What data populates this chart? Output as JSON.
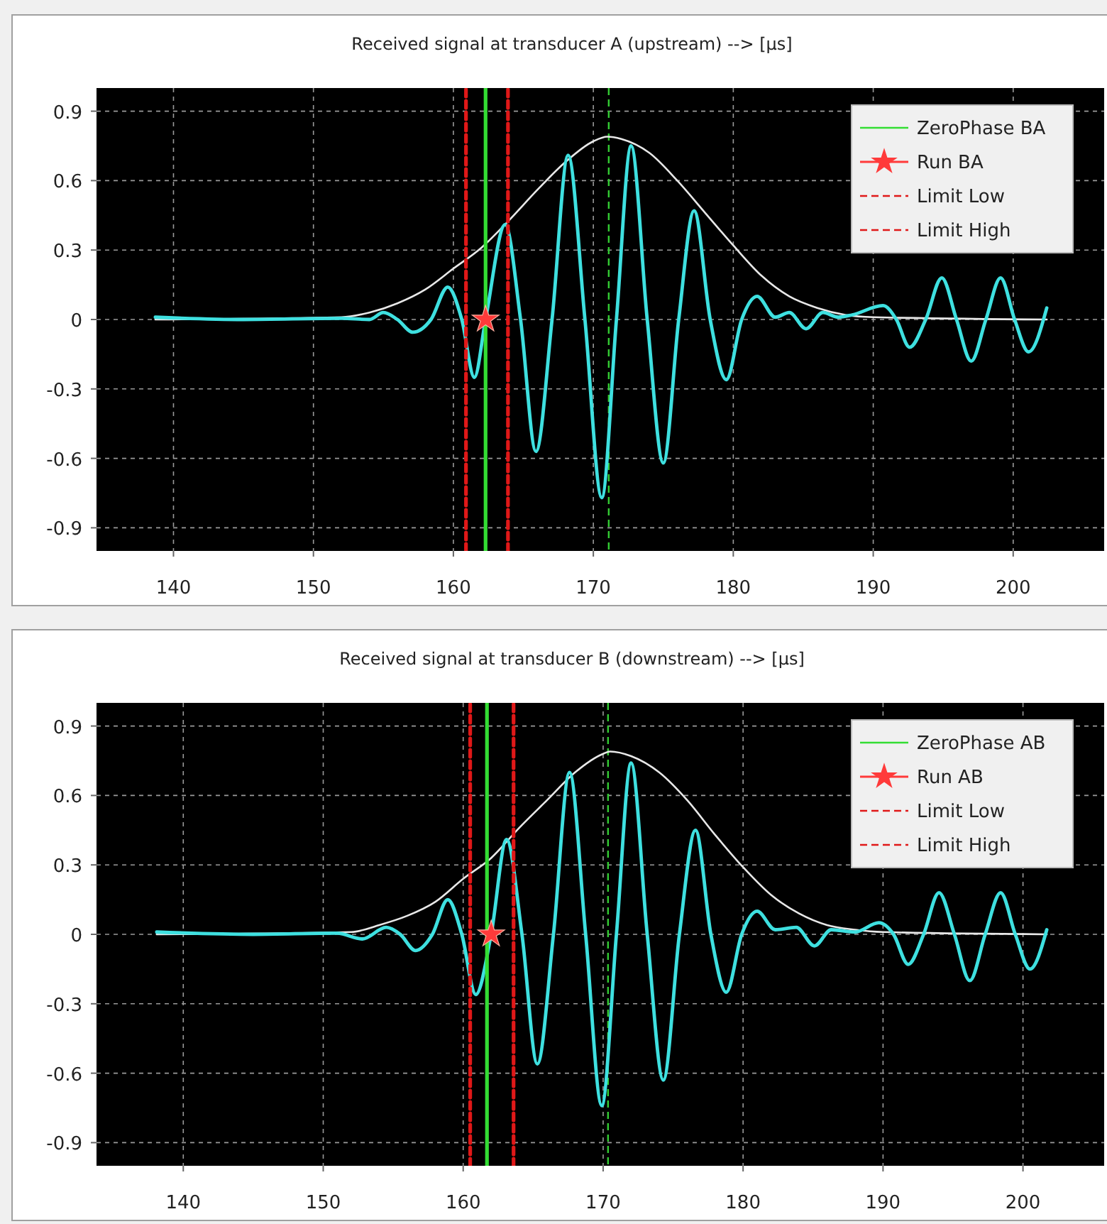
{
  "chart_data": [
    {
      "type": "line",
      "title": "Received signal at transducer A (upstream) --> [µs]",
      "xlim": [
        134.5,
        206.5
      ],
      "ylim": [
        -1,
        1
      ],
      "xticks": [
        140,
        150,
        160,
        170,
        180,
        190,
        200
      ],
      "yticks": [
        -0.9,
        -0.6,
        -0.3,
        0,
        0.3,
        0.6,
        0.9
      ],
      "grid": true,
      "legend": "top right",
      "series": [
        {
          "type": "line",
          "color": "#e8e8e8",
          "x": [
            138.7,
            152,
            154,
            156,
            158,
            160,
            162,
            164,
            166,
            168,
            170,
            171,
            172,
            174,
            176,
            178,
            180,
            182,
            184,
            186,
            188,
            190,
            202.4
          ],
          "values": [
            0,
            0.01,
            0.03,
            0.07,
            0.13,
            0.22,
            0.31,
            0.43,
            0.56,
            0.68,
            0.77,
            0.79,
            0.78,
            0.72,
            0.6,
            0.46,
            0.32,
            0.19,
            0.1,
            0.05,
            0.02,
            0.01,
            0
          ]
        },
        {
          "type": "line",
          "color": "#3ee0e0",
          "x": [
            138.7,
            145,
            152,
            154,
            155,
            156,
            157.1,
            158.4,
            159.6,
            160.6,
            161.5,
            162.3,
            163.7,
            164.8,
            165.9,
            167.05,
            168.2,
            169.4,
            170.6,
            171.65,
            172.7,
            173.85,
            175,
            176.1,
            177.2,
            178.35,
            179.5,
            180.6,
            181.7,
            183,
            184,
            185.2,
            186.4,
            187.5,
            188.5,
            190.7,
            191.65,
            192.6,
            193.75,
            194.9,
            195.95,
            197,
            198.05,
            199.1,
            200.1,
            201.1,
            202.4
          ],
          "values": [
            0.01,
            0,
            0.005,
            0,
            0.03,
            0,
            -0.055,
            0,
            0.14,
            0,
            -0.25,
            0,
            0.41,
            0,
            -0.57,
            0,
            0.71,
            0,
            -0.77,
            0,
            0.75,
            0,
            -0.62,
            0,
            0.47,
            0,
            -0.26,
            0,
            0.1,
            0.01,
            0.03,
            -0.04,
            0.03,
            0.01,
            0.02,
            0.06,
            0,
            -0.12,
            0,
            0.18,
            0,
            -0.18,
            0,
            0.18,
            0,
            -0.14,
            0.05
          ]
        },
        {
          "type": "line",
          "name": "ZeroPhase BA",
          "color": "#33dd33",
          "x": [
            162.3,
            162.3
          ],
          "values": [
            -1,
            1
          ]
        },
        {
          "type": "scatter",
          "name": "Run BA",
          "color": "#ff3a3a",
          "marker": "star",
          "x": [
            162.3
          ],
          "values": [
            0
          ]
        },
        {
          "type": "line",
          "name": "Limit Low",
          "color": "#e01818",
          "line_style": "dashed",
          "x": [
            160.9,
            160.9
          ],
          "values": [
            -1,
            1
          ]
        },
        {
          "type": "line",
          "name": "Limit High",
          "color": "#e01818",
          "line_style": "dashed",
          "x": [
            163.9,
            163.9
          ],
          "values": [
            -1,
            1
          ]
        }
      ],
      "ref_lines": [
        {
          "axis": "x",
          "value": 171.1,
          "color": "#33cc33",
          "line_style": "dashed"
        }
      ]
    },
    {
      "type": "line",
      "title": "Received signal at transducer B (downstream) --> [µs]",
      "xlim": [
        133.8,
        205.8
      ],
      "ylim": [
        -1,
        1
      ],
      "xticks": [
        140,
        150,
        160,
        170,
        180,
        190,
        200
      ],
      "yticks": [
        -0.9,
        -0.6,
        -0.3,
        0,
        0.3,
        0.6,
        0.9
      ],
      "grid": true,
      "legend": "top right",
      "series": [
        {
          "type": "line",
          "color": "#e8e8e8",
          "x": [
            138.1,
            152,
            154,
            156,
            158,
            160,
            162,
            164,
            166,
            168,
            170,
            170.5,
            172,
            174,
            176,
            178,
            180,
            182,
            184,
            186,
            188,
            190,
            201.7
          ],
          "values": [
            0,
            0.01,
            0.04,
            0.08,
            0.14,
            0.24,
            0.33,
            0.46,
            0.58,
            0.7,
            0.78,
            0.79,
            0.77,
            0.7,
            0.58,
            0.43,
            0.29,
            0.17,
            0.09,
            0.04,
            0.02,
            0.01,
            0
          ]
        },
        {
          "type": "line",
          "color": "#3ee0e0",
          "x": [
            138.1,
            145,
            151,
            152.8,
            154.5,
            155.5,
            156.6,
            157.8,
            158.9,
            159.9,
            160.9,
            162,
            163.1,
            164.2,
            165.3,
            166.45,
            167.6,
            168.75,
            169.9,
            170.95,
            172,
            173.15,
            174.3,
            175.45,
            176.6,
            177.7,
            178.8,
            179.9,
            181,
            182.3,
            183.8,
            185.1,
            186.3,
            188,
            189.7,
            190.75,
            191.8,
            192.9,
            194,
            195.1,
            196.2,
            197.3,
            198.4,
            199.45,
            200.5,
            201.7
          ],
          "values": [
            0.01,
            0,
            0.005,
            -0.02,
            0.03,
            0,
            -0.07,
            0,
            0.15,
            0,
            -0.26,
            0,
            0.41,
            0,
            -0.56,
            0,
            0.7,
            0,
            -0.74,
            0,
            0.74,
            0,
            -0.63,
            0,
            0.45,
            0,
            -0.25,
            0,
            0.1,
            0.02,
            0.03,
            -0.05,
            0.02,
            0.01,
            0.05,
            0,
            -0.13,
            0,
            0.18,
            0,
            -0.2,
            0,
            0.18,
            0,
            -0.15,
            0.02
          ]
        },
        {
          "type": "line",
          "name": "ZeroPhase AB",
          "color": "#33dd33",
          "x": [
            161.7,
            161.7
          ],
          "values": [
            -1,
            1
          ]
        },
        {
          "type": "scatter",
          "name": "Run AB",
          "color": "#ff3a3a",
          "marker": "star",
          "x": [
            162.0
          ],
          "values": [
            0
          ]
        },
        {
          "type": "line",
          "name": "Limit Low",
          "color": "#e01818",
          "line_style": "dashed",
          "x": [
            160.5,
            160.5
          ],
          "values": [
            -1,
            1
          ]
        },
        {
          "type": "line",
          "name": "Limit High",
          "color": "#e01818",
          "line_style": "dashed",
          "x": [
            163.6,
            163.6
          ],
          "values": [
            -1,
            1
          ]
        }
      ],
      "ref_lines": [
        {
          "axis": "x",
          "value": 170.35,
          "color": "#33cc33",
          "line_style": "dashed"
        }
      ]
    }
  ]
}
